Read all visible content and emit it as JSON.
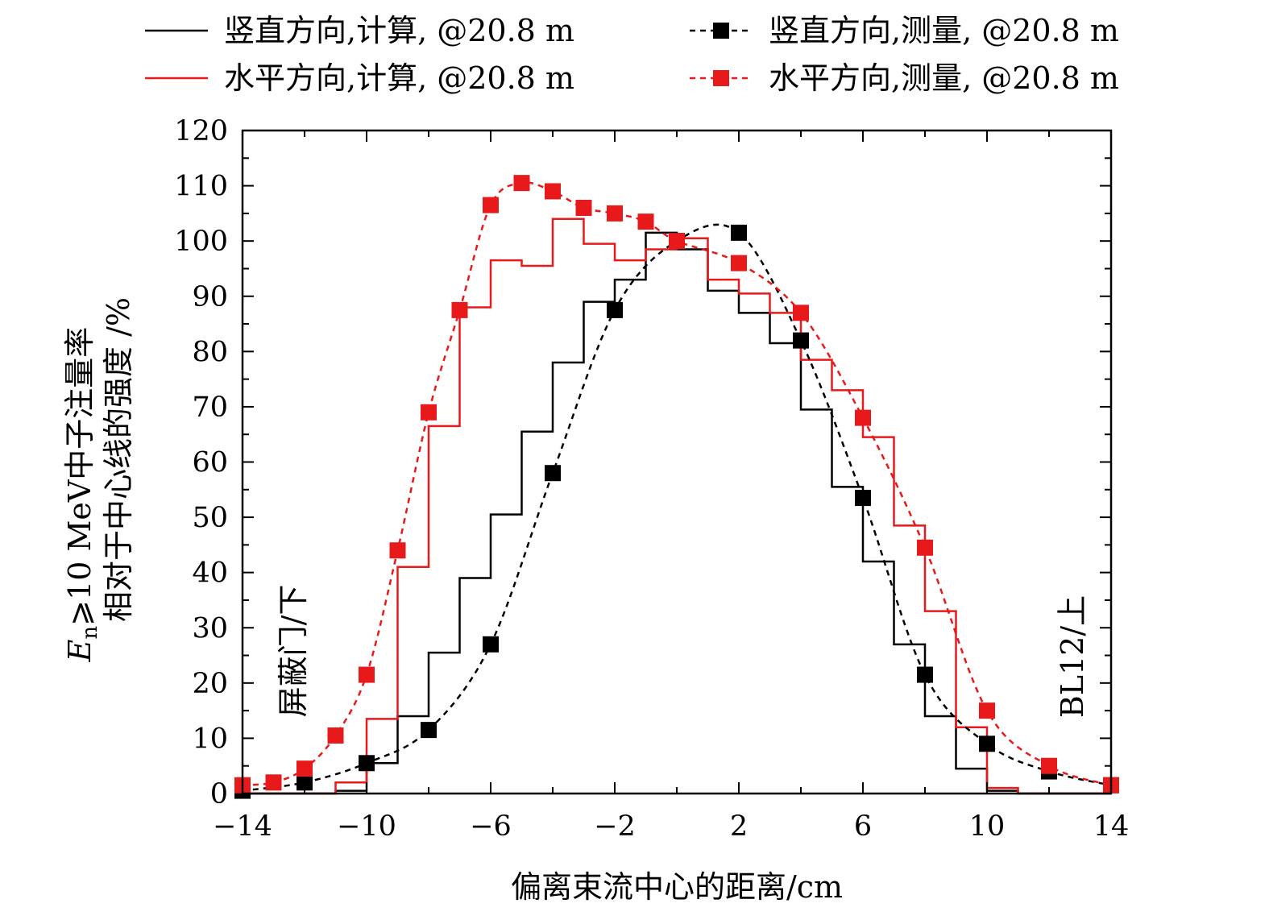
{
  "chart_data": {
    "type": "line",
    "title": "",
    "xlabel": "偏离束流中心的距离/cm",
    "ylabel_line1_prefix": "E",
    "ylabel_line1_sub": "n",
    "ylabel_line1_rest": "⩾10 MeV中子注量率",
    "ylabel_line2": "相对于中心线的强度 /%",
    "xlim": [
      -14,
      14
    ],
    "ylim": [
      0,
      120
    ],
    "xticks": [
      -14,
      -10,
      -6,
      -2,
      2,
      6,
      10,
      14
    ],
    "xtick_labels": [
      "−14",
      "−10",
      "−6",
      "−2",
      "2",
      "6",
      "10",
      "14"
    ],
    "yticks": [
      0,
      10,
      20,
      30,
      40,
      50,
      60,
      70,
      80,
      90,
      100,
      110,
      120
    ],
    "ytick_labels": [
      "0",
      "10",
      "20",
      "30",
      "40",
      "50",
      "60",
      "70",
      "80",
      "90",
      "100",
      "110",
      "120"
    ],
    "annotations": {
      "left": "屏蔽门/下",
      "right": "BL12/上"
    },
    "series": [
      {
        "name": "竖直方向,计算, @20.8 m",
        "style": "step",
        "color": "#000000",
        "bin_edges": [
          -14,
          -13,
          -12,
          -11,
          -10,
          -9,
          -8,
          -7,
          -6,
          -5,
          -4,
          -3,
          -2,
          -1,
          0,
          1,
          2,
          3,
          4,
          5,
          6,
          7,
          8,
          9,
          10,
          11,
          12,
          13,
          14
        ],
        "values": [
          0,
          0,
          0,
          0.5,
          5.5,
          14,
          25.5,
          39,
          50.5,
          65.5,
          78,
          89,
          93,
          101.5,
          98.5,
          91,
          87,
          81.5,
          69.5,
          55.5,
          42,
          27,
          14,
          4.5,
          0.5,
          0,
          0,
          0
        ]
      },
      {
        "name": "水平方向,计算, @20.8 m",
        "style": "step",
        "color": "#e8191a",
        "bin_edges": [
          -14,
          -13,
          -12,
          -11,
          -10,
          -9,
          -8,
          -7,
          -6,
          -5,
          -4,
          -3,
          -2,
          -1,
          0,
          1,
          2,
          3,
          4,
          5,
          6,
          7,
          8,
          9,
          10,
          11,
          12,
          13,
          14
        ],
        "values": [
          0,
          0,
          0,
          2,
          13.5,
          41,
          66.5,
          88,
          96.5,
          95.5,
          104,
          99.5,
          96.5,
          98.5,
          100.5,
          93,
          90.5,
          87,
          78.5,
          73,
          64.5,
          48.5,
          33,
          12,
          1,
          0,
          0,
          0
        ]
      },
      {
        "name": "竖直方向,测量, @20.8 m",
        "style": "dashed-marker",
        "color": "#000000",
        "x": [
          -14,
          -12,
          -10,
          -8,
          -6,
          -4,
          -2,
          0,
          2,
          4,
          6,
          8,
          10,
          12,
          14
        ],
        "y": [
          0.5,
          2,
          5.5,
          11.5,
          27,
          58,
          87.5,
          100,
          101.5,
          82,
          53.5,
          21.5,
          9,
          4,
          1.5
        ]
      },
      {
        "name": "水平方向,测量, @20.8 m",
        "style": "dashed-marker",
        "color": "#e8191a",
        "x": [
          -14,
          -13,
          -12,
          -11,
          -10,
          -9,
          -8,
          -7,
          -6,
          -5,
          -4,
          -3,
          -2,
          -1,
          0,
          2,
          4,
          6,
          8,
          10,
          12,
          14
        ],
        "y": [
          1.5,
          2,
          4.5,
          10.5,
          21.5,
          44,
          69,
          87.5,
          106.5,
          110.5,
          109,
          106,
          105,
          103.5,
          100,
          96,
          87,
          68,
          44.5,
          15,
          5,
          1.5
        ]
      }
    ],
    "legend_order": [
      0,
      2,
      1,
      3
    ]
  }
}
